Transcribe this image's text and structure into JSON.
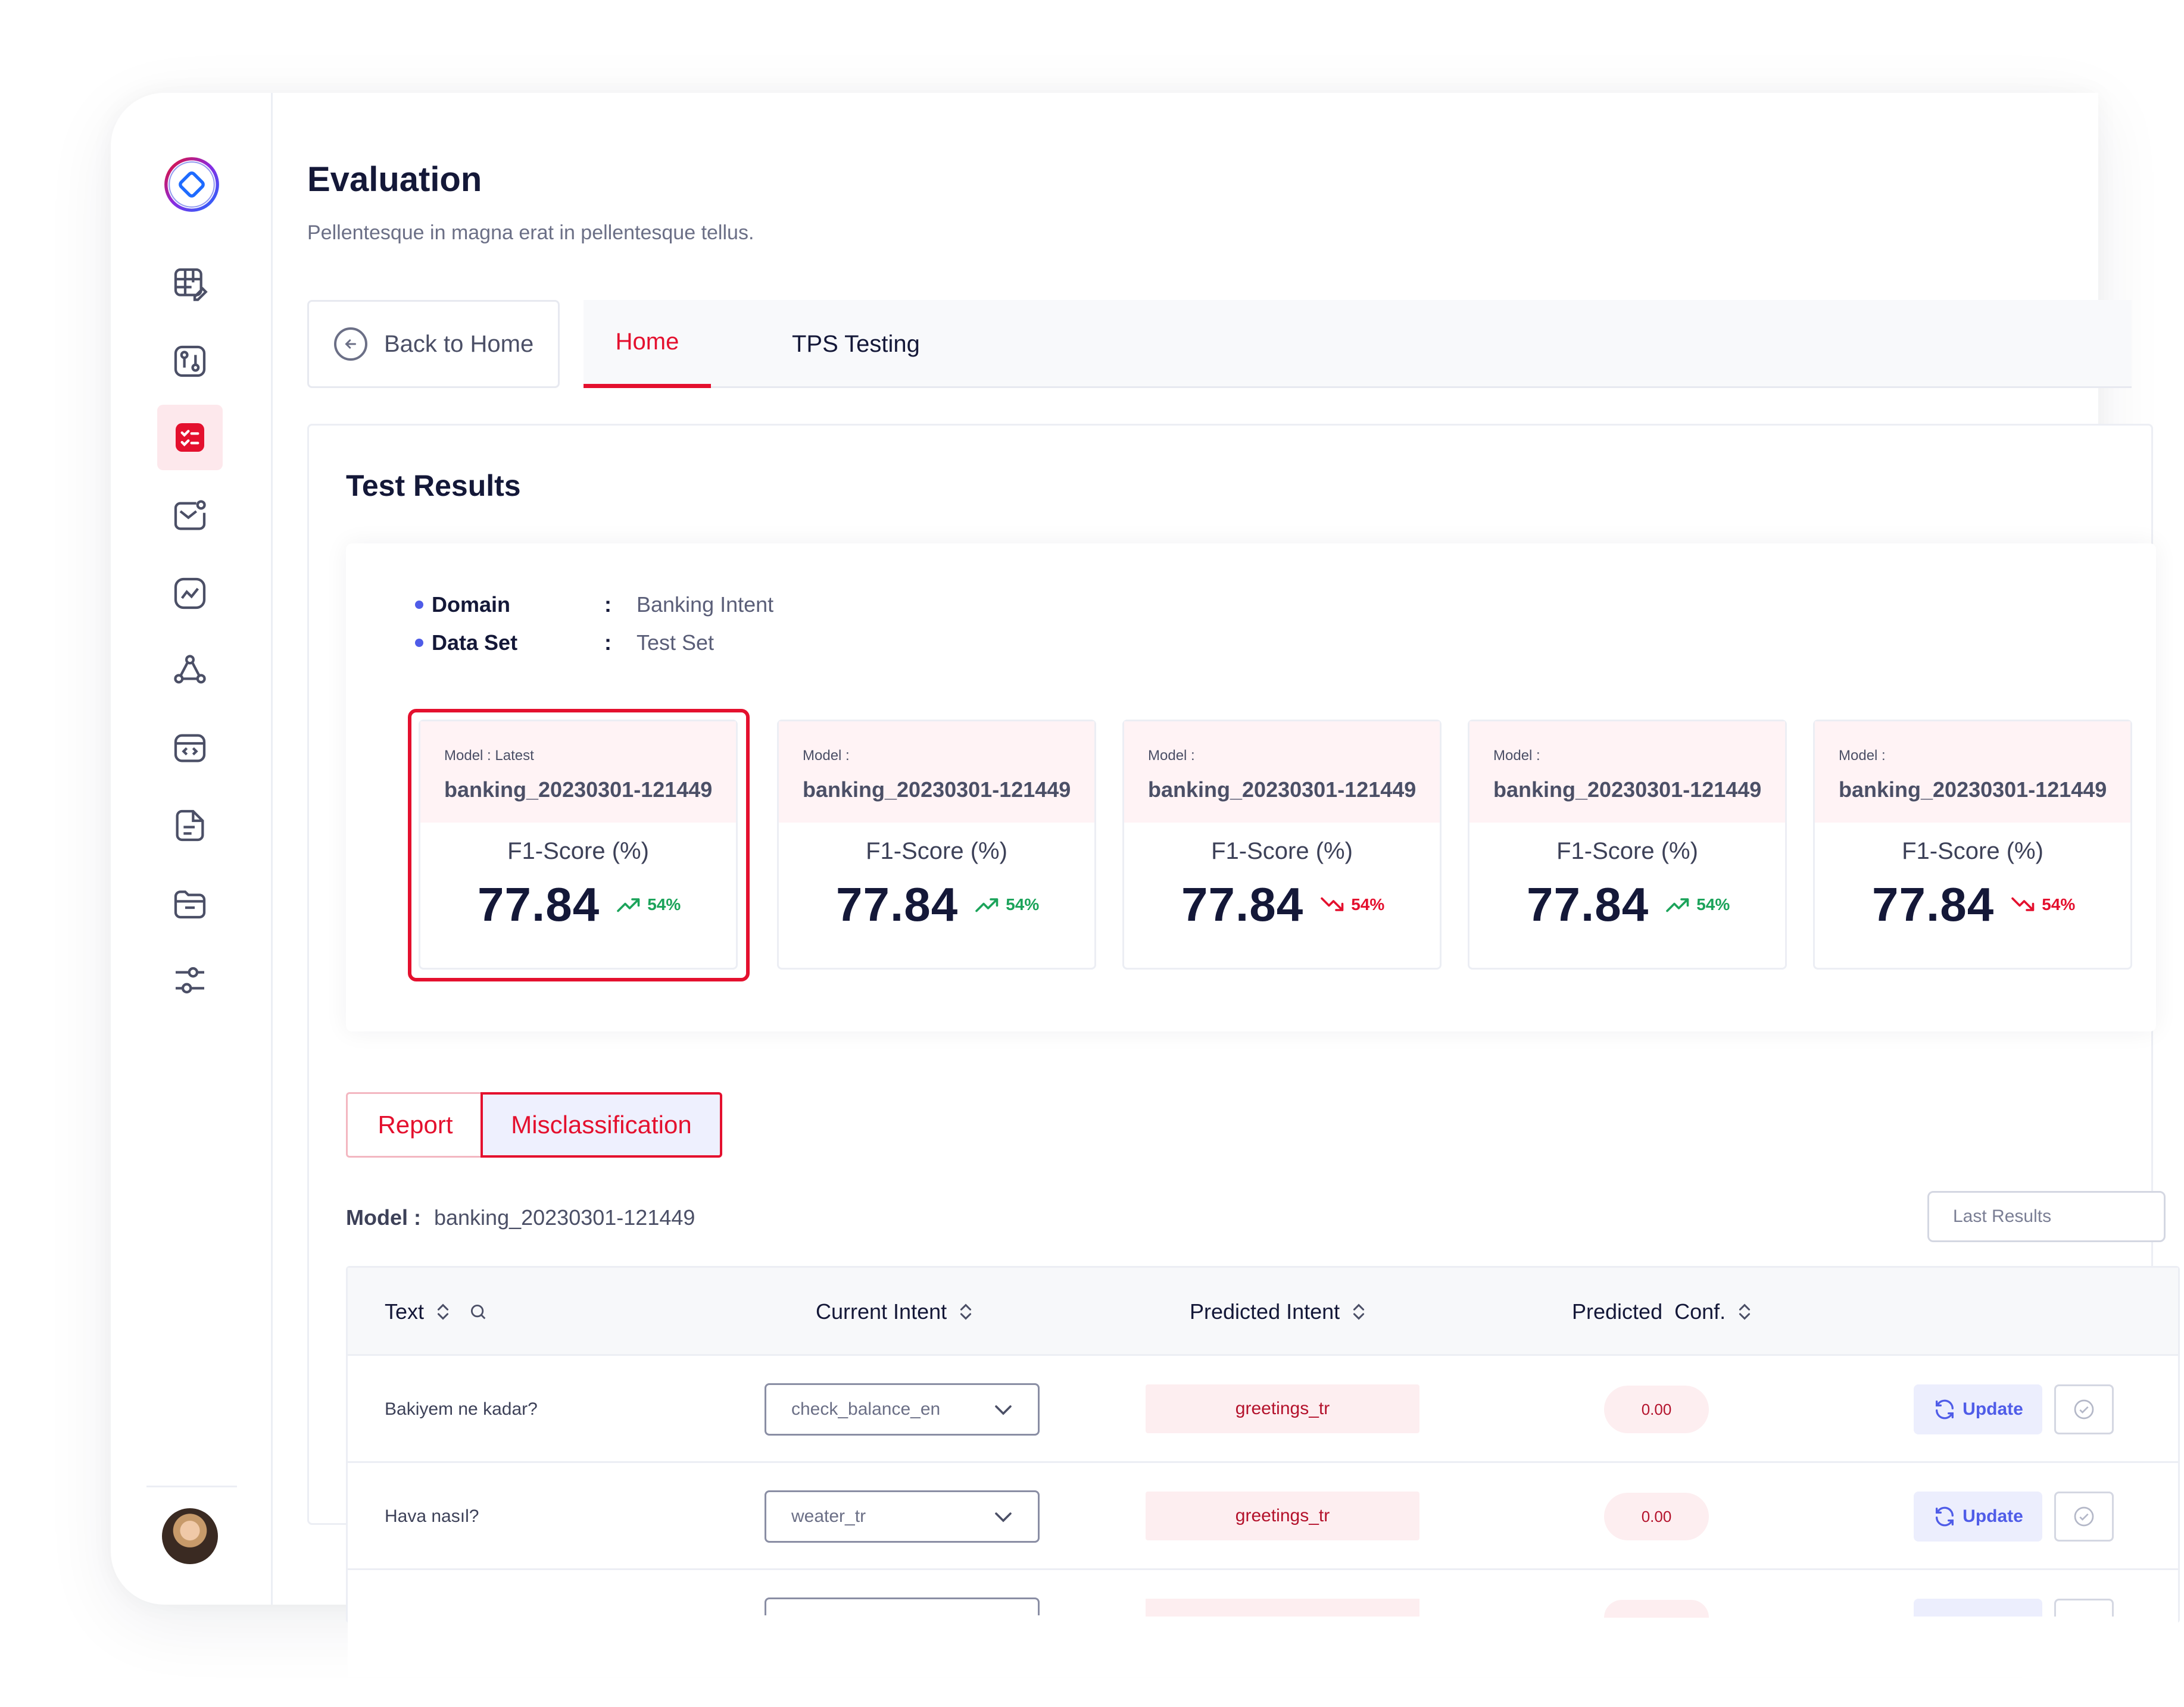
{
  "page": {
    "title": "Evaluation",
    "subtitle": "Pellentesque in magna erat in pellentesque tellus."
  },
  "nav": {
    "back_label": "Back to Home",
    "tabs": [
      {
        "label": "Home",
        "active": true
      },
      {
        "label": "TPS Testing",
        "active": false
      }
    ]
  },
  "sidebar": {
    "icons": [
      "table-edit-icon",
      "git-compare-icon",
      "checklist-icon",
      "mail-notification-icon",
      "chart-line-icon",
      "network-icon",
      "code-window-icon",
      "document-icon",
      "folder-icon",
      "sliders-icon"
    ],
    "active_index": 2
  },
  "results": {
    "title": "Test Results",
    "meta": [
      {
        "key": "Domain",
        "sep": ":",
        "value": "Banking Intent"
      },
      {
        "key": "Data Set",
        "sep": ":",
        "value": "Test Set"
      }
    ],
    "cards": [
      {
        "label": "Model : Latest",
        "name": "banking_20230301-121449",
        "metric": "F1-Score (%)",
        "score": "77.84",
        "change": "54%",
        "direction": "up",
        "selected": true
      },
      {
        "label": "Model :",
        "name": "banking_20230301-121449",
        "metric": "F1-Score (%)",
        "score": "77.84",
        "change": "54%",
        "direction": "up",
        "selected": false
      },
      {
        "label": "Model :",
        "name": "banking_20230301-121449",
        "metric": "F1-Score (%)",
        "score": "77.84",
        "change": "54%",
        "direction": "down",
        "selected": false
      },
      {
        "label": "Model :",
        "name": "banking_20230301-121449",
        "metric": "F1-Score (%)",
        "score": "77.84",
        "change": "54%",
        "direction": "up",
        "selected": false
      },
      {
        "label": "Model :",
        "name": "banking_20230301-121449",
        "metric": "F1-Score (%)",
        "score": "77.84",
        "change": "54%",
        "direction": "down",
        "selected": false
      }
    ]
  },
  "views": {
    "report_label": "Report",
    "misclassification_label": "Misclassification",
    "active": "Misclassification"
  },
  "model_line": {
    "key": "Model :",
    "value": "banking_20230301-121449"
  },
  "last_results": {
    "placeholder": "Last Results"
  },
  "table": {
    "headers": {
      "text": "Text",
      "current_intent": "Current Intent",
      "predicted_intent": "Predicted Intent",
      "predicted_conf": "Predicted  Conf."
    },
    "rows": [
      {
        "text": "Bakiyem ne kadar?",
        "current_intent": "check_balance_en",
        "predicted_intent": "greetings_tr",
        "predicted_conf": "0.00",
        "update_label": "Update"
      },
      {
        "text": "Hava nasıl?",
        "current_intent": "weater_tr",
        "predicted_intent": "greetings_tr",
        "predicted_conf": "0.00",
        "update_label": "Update"
      }
    ]
  },
  "colors": {
    "accent": "#e4102e",
    "primary": "#4f5ce8",
    "up": "#1ba35a",
    "down": "#e4102e"
  }
}
